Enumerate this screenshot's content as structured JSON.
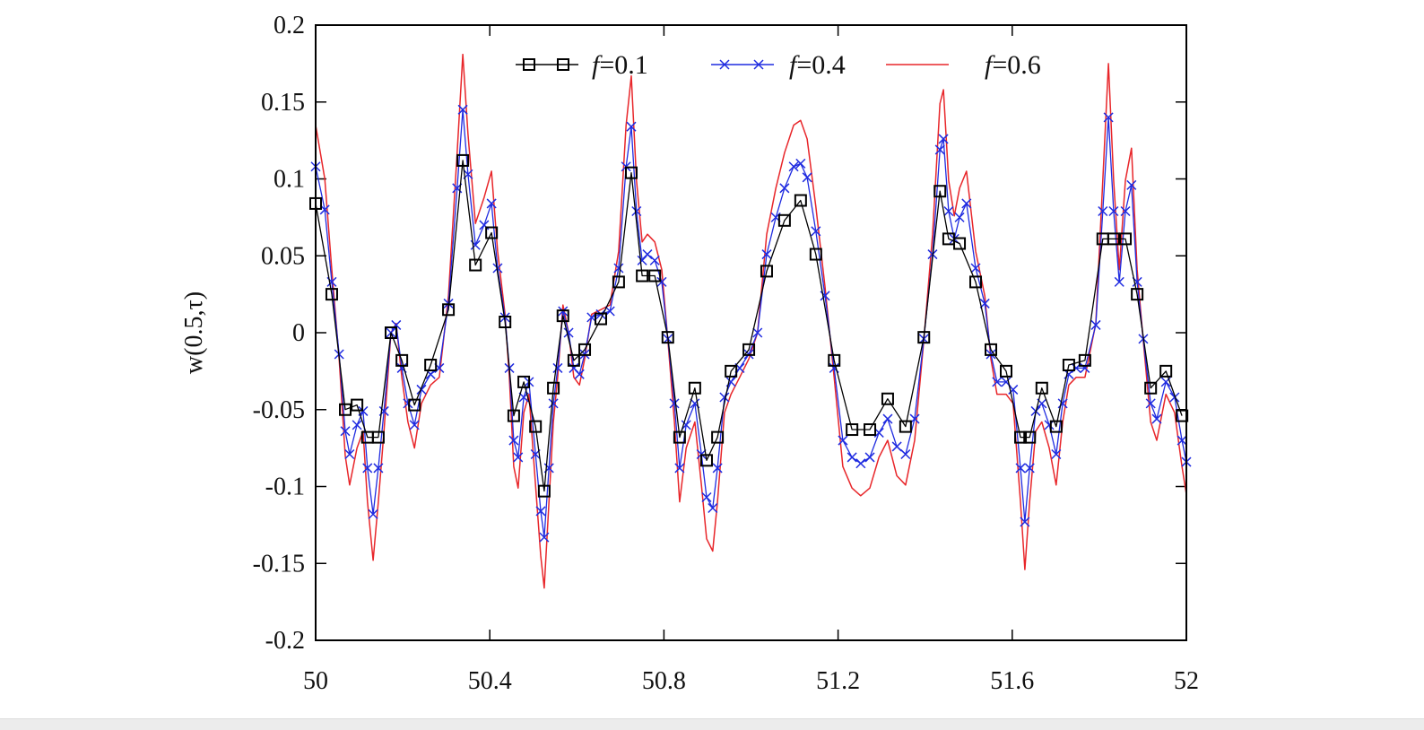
{
  "chart_data": {
    "type": "line",
    "title": "",
    "xlabel": "",
    "ylabel": "w(0.5,τ)",
    "xlim": [
      50,
      52
    ],
    "ylim": [
      -0.2,
      0.2
    ],
    "xticks": [
      "50",
      "50.4",
      "50.8",
      "51.2",
      "51.6",
      "52"
    ],
    "xtick_values": [
      50,
      50.4,
      50.8,
      51.2,
      51.6,
      52
    ],
    "yticks": [
      "0.2",
      "0.15",
      "0.1",
      "0.05",
      "0",
      "-0.05",
      "-0.1",
      "-0.15",
      "-0.2"
    ],
    "ytick_values": [
      0.2,
      0.15,
      0.1,
      0.05,
      0,
      -0.05,
      -0.1,
      -0.15,
      -0.2
    ],
    "grid": false,
    "legend_position": "top-center",
    "x": [
      50.0,
      50.021,
      50.037,
      50.054,
      50.068,
      50.078,
      50.095,
      50.109,
      50.119,
      50.132,
      50.144,
      50.157,
      50.173,
      50.185,
      50.198,
      50.212,
      50.227,
      50.243,
      50.264,
      50.284,
      50.305,
      50.325,
      50.338,
      50.35,
      50.367,
      50.387,
      50.404,
      50.418,
      50.435,
      50.445,
      50.455,
      50.465,
      50.478,
      50.49,
      50.505,
      50.517,
      50.525,
      50.536,
      50.546,
      50.556,
      50.568,
      50.581,
      50.593,
      50.606,
      50.618,
      50.634,
      50.655,
      50.676,
      50.696,
      50.713,
      50.725,
      50.737,
      50.75,
      50.762,
      50.779,
      50.795,
      50.809,
      50.824,
      50.836,
      50.851,
      50.871,
      50.886,
      50.898,
      50.912,
      50.923,
      50.939,
      50.954,
      50.974,
      50.995,
      51.015,
      51.036,
      51.057,
      51.077,
      51.098,
      51.114,
      51.129,
      51.149,
      51.17,
      51.191,
      51.211,
      51.232,
      51.252,
      51.273,
      51.294,
      51.314,
      51.335,
      51.355,
      51.376,
      51.397,
      51.417,
      51.434,
      51.442,
      51.454,
      51.467,
      51.479,
      51.495,
      51.516,
      51.537,
      51.551,
      51.565,
      51.586,
      51.602,
      51.619,
      51.629,
      51.64,
      51.654,
      51.668,
      51.685,
      51.701,
      51.716,
      51.73,
      51.747,
      51.767,
      51.792,
      51.808,
      51.821,
      51.833,
      51.846,
      51.86,
      51.874,
      51.887,
      51.901,
      51.918,
      51.932,
      51.953,
      51.973,
      51.99,
      52.0
    ],
    "series": [
      {
        "name": "f=0.1",
        "label_italic": "f",
        "label_rest": "=0.1",
        "color": "#000000",
        "marker": "square",
        "x": [
          50.0,
          50.037,
          50.068,
          50.095,
          50.119,
          50.144,
          50.173,
          50.198,
          50.227,
          50.264,
          50.305,
          50.338,
          50.367,
          50.404,
          50.435,
          50.455,
          50.478,
          50.505,
          50.525,
          50.546,
          50.568,
          50.593,
          50.618,
          50.655,
          50.696,
          50.725,
          50.75,
          50.779,
          50.809,
          50.836,
          50.871,
          50.898,
          50.923,
          50.954,
          50.995,
          51.036,
          51.077,
          51.114,
          51.149,
          51.191,
          51.232,
          51.273,
          51.314,
          51.355,
          51.397,
          51.434,
          51.454,
          51.479,
          51.516,
          51.551,
          51.586,
          51.619,
          51.64,
          51.668,
          51.701,
          51.73,
          51.767,
          51.808,
          51.833,
          51.86,
          51.887,
          51.918,
          51.953,
          51.99
        ],
        "y": [
          0.084,
          0.025,
          -0.05,
          -0.047,
          -0.068,
          -0.068,
          0,
          -0.018,
          -0.047,
          -0.021,
          0.015,
          0.112,
          0.044,
          0.065,
          0.007,
          -0.054,
          -0.032,
          -0.061,
          -0.103,
          -0.036,
          0.011,
          -0.018,
          -0.011,
          0.009,
          0.033,
          0.104,
          0.037,
          0.037,
          -0.003,
          -0.068,
          -0.036,
          -0.083,
          -0.068,
          -0.025,
          -0.011,
          0.04,
          0.073,
          0.086,
          0.051,
          -0.018,
          -0.063,
          -0.063,
          -0.043,
          -0.061,
          -0.003,
          0.092,
          0.061,
          0.058,
          0.033,
          -0.011,
          -0.025,
          -0.068,
          -0.068,
          -0.036,
          -0.061,
          -0.021,
          -0.018,
          0.061,
          0.061,
          0.061,
          0.025,
          -0.036,
          -0.025,
          -0.054
        ]
      },
      {
        "name": "f=0.4",
        "label_italic": "f",
        "label_rest": "=0.4",
        "color": "#1f2be0",
        "marker": "x",
        "y": [
          0.108,
          0.08,
          0.033,
          -0.014,
          -0.064,
          -0.079,
          -0.06,
          -0.051,
          -0.088,
          -0.118,
          -0.088,
          -0.051,
          0,
          0.005,
          -0.023,
          -0.046,
          -0.06,
          -0.037,
          -0.027,
          -0.023,
          0.019,
          0.094,
          0.145,
          0.103,
          0.057,
          0.07,
          0.084,
          0.042,
          0.01,
          -0.023,
          -0.07,
          -0.081,
          -0.042,
          -0.032,
          -0.079,
          -0.116,
          -0.133,
          -0.088,
          -0.046,
          -0.023,
          0.014,
          0,
          -0.023,
          -0.027,
          -0.014,
          0.01,
          0.012,
          0.014,
          0.042,
          0.108,
          0.134,
          0.079,
          0.047,
          0.051,
          0.047,
          0.033,
          -0.004,
          -0.046,
          -0.088,
          -0.06,
          -0.046,
          -0.079,
          -0.107,
          -0.114,
          -0.088,
          -0.042,
          -0.032,
          -0.023,
          -0.014,
          0,
          0.051,
          0.075,
          0.094,
          0.108,
          0.11,
          0.101,
          0.066,
          0.024,
          -0.023,
          -0.07,
          -0.081,
          -0.085,
          -0.081,
          -0.065,
          -0.056,
          -0.074,
          -0.079,
          -0.056,
          -0.004,
          0.051,
          0.119,
          0.126,
          0.079,
          0.061,
          0.075,
          0.084,
          0.042,
          0.019,
          -0.014,
          -0.032,
          -0.032,
          -0.037,
          -0.088,
          -0.123,
          -0.088,
          -0.051,
          -0.046,
          -0.06,
          -0.079,
          -0.046,
          -0.027,
          -0.023,
          -0.023,
          0.005,
          0.079,
          0.14,
          0.079,
          0.033,
          0.079,
          0.096,
          0.033,
          -0.004,
          -0.046,
          -0.056,
          -0.032,
          -0.042,
          -0.07,
          -0.084
        ]
      },
      {
        "name": "f=0.6",
        "label_italic": "f",
        "label_rest": "=0.6",
        "color": "#e8262a",
        "marker": "none",
        "y": [
          0.135,
          0.1,
          0.041,
          -0.017,
          -0.08,
          -0.099,
          -0.075,
          -0.064,
          -0.11,
          -0.148,
          -0.11,
          -0.064,
          0,
          0.006,
          -0.029,
          -0.058,
          -0.075,
          -0.046,
          -0.034,
          -0.029,
          0.024,
          0.117,
          0.181,
          0.129,
          0.071,
          0.088,
          0.105,
          0.053,
          0.012,
          -0.029,
          -0.087,
          -0.101,
          -0.052,
          -0.04,
          -0.099,
          -0.145,
          -0.166,
          -0.11,
          -0.058,
          -0.029,
          0.018,
          0,
          -0.029,
          -0.034,
          -0.017,
          0.012,
          0.015,
          0.018,
          0.053,
          0.135,
          0.167,
          0.099,
          0.059,
          0.064,
          0.059,
          0.041,
          -0.005,
          -0.058,
          -0.11,
          -0.075,
          -0.058,
          -0.099,
          -0.134,
          -0.142,
          -0.11,
          -0.052,
          -0.04,
          -0.029,
          -0.017,
          0,
          0.064,
          0.094,
          0.117,
          0.135,
          0.138,
          0.126,
          0.082,
          0.03,
          -0.029,
          -0.087,
          -0.101,
          -0.106,
          -0.101,
          -0.081,
          -0.07,
          -0.093,
          -0.099,
          -0.07,
          -0.005,
          0.064,
          0.149,
          0.158,
          0.099,
          0.076,
          0.094,
          0.105,
          0.053,
          0.024,
          -0.017,
          -0.04,
          -0.04,
          -0.046,
          -0.11,
          -0.154,
          -0.11,
          -0.064,
          -0.058,
          -0.075,
          -0.099,
          -0.058,
          -0.034,
          -0.029,
          -0.029,
          0.006,
          0.099,
          0.175,
          0.099,
          0.041,
          0.099,
          0.12,
          0.041,
          -0.005,
          -0.058,
          -0.07,
          -0.04,
          -0.052,
          -0.087,
          -0.105
        ]
      }
    ]
  }
}
